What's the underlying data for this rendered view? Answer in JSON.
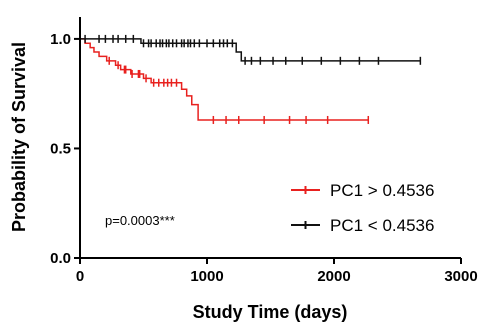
{
  "chart_data": {
    "type": "line",
    "xlabel": "Study Time (days)",
    "ylabel": "Probability of Survival",
    "xlim": [
      0,
      3000
    ],
    "ylim": [
      0,
      1.1
    ],
    "x_ticks": [
      0,
      1000,
      2000,
      3000
    ],
    "x_tick_labels": [
      "0",
      "1000",
      "2000",
      "3000"
    ],
    "y_ticks": [
      0,
      0.5,
      1.0
    ],
    "y_tick_labels": [
      "0.0",
      "0.5",
      "1.0"
    ],
    "grid": false,
    "legend_position": "bottom-right",
    "annotation": "p=0.0003***",
    "series": [
      {
        "name": "PC1 > 0.4536",
        "color": "#e8211f",
        "step_x": [
          0,
          40,
          80,
          110,
          150,
          210,
          280,
          320,
          400,
          500,
          560,
          800,
          840,
          880,
          930,
          2270
        ],
        "step_y": [
          1.0,
          0.98,
          0.96,
          0.94,
          0.92,
          0.9,
          0.88,
          0.86,
          0.84,
          0.82,
          0.8,
          0.77,
          0.74,
          0.7,
          0.63,
          0.63
        ],
        "censor_x": [
          230,
          300,
          350,
          360,
          410,
          460,
          470,
          520,
          580,
          620,
          660,
          690,
          720,
          760,
          1050,
          1150,
          1250,
          1450,
          1650,
          1780,
          1950,
          2270
        ]
      },
      {
        "name": "PC1 < 0.4536",
        "color": "#111111",
        "step_x": [
          0,
          480,
          1230,
          1270,
          2680
        ],
        "step_y": [
          1.0,
          0.98,
          0.94,
          0.9,
          0.9
        ],
        "censor_x": [
          40,
          150,
          200,
          260,
          300,
          360,
          420,
          500,
          540,
          560,
          600,
          630,
          650,
          680,
          700,
          730,
          760,
          800,
          820,
          850,
          870,
          900,
          940,
          1000,
          1050,
          1100,
          1130,
          1160,
          1200,
          1300,
          1350,
          1420,
          1520,
          1620,
          1750,
          1900,
          2050,
          2200,
          2350,
          2680
        ]
      }
    ]
  }
}
